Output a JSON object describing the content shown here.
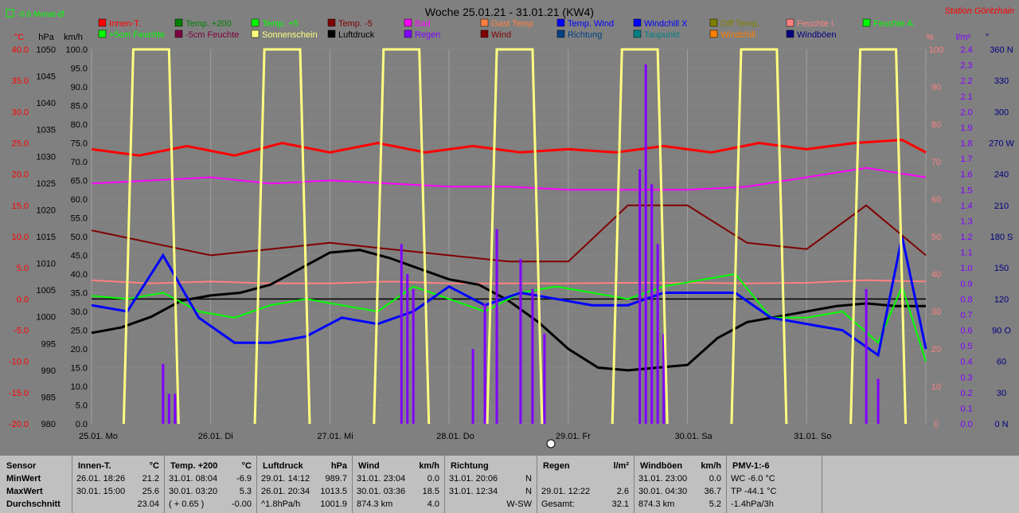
{
  "title": "Woche 25.01.21 - 31.01.21 (KW4)",
  "station": "Station Göritzhain",
  "indicator": "-0.6 Monat-Ø",
  "colors": {
    "background": "#808080",
    "red": "#ff0000",
    "yellow": "#ffff80",
    "green": "#00ff00",
    "purple": "#8b00ff"
  },
  "chart_data": {
    "type": "line",
    "x_days": [
      "25.01. Mo",
      "26.01. Di",
      "27.01. Mi",
      "28.01. Do",
      "29.01. Fr",
      "30.01. Sa",
      "31.01. So"
    ],
    "axes": {
      "temp_c": {
        "unit": "°C",
        "ticks": [
          "40.0",
          "35.0",
          "30.0",
          "25.0",
          "20.0",
          "15.0",
          "10.0",
          "5.0",
          "0.0",
          "-5.0",
          "-10.0",
          "-15.0",
          "-20.0"
        ]
      },
      "pressure_hpa": {
        "unit": "hPa",
        "ticks": [
          "1050",
          "1045",
          "1040",
          "1035",
          "1030",
          "1025",
          "1020",
          "1015",
          "1010",
          "1005",
          "1000",
          "995",
          "990",
          "985",
          "980"
        ]
      },
      "wind_kmh": {
        "unit": "km/h",
        "ticks": [
          "100.0",
          "95.0",
          "90.0",
          "85.0",
          "80.0",
          "75.0",
          "70.0",
          "65.0",
          "60.0",
          "55.0",
          "50.0",
          "45.0",
          "40.0",
          "35.0",
          "30.0",
          "25.0",
          "20.0",
          "15.0",
          "10.0",
          "5.0",
          "0.0"
        ]
      },
      "humidity_pct": {
        "unit": "%",
        "ticks": [
          "100",
          "90",
          "80",
          "70",
          "60",
          "50",
          "40",
          "30",
          "20",
          "10",
          "0"
        ]
      },
      "rain_lm2": {
        "unit": "l/m²",
        "ticks": [
          "2.4",
          "2.3",
          "2.2",
          "2.1",
          "2.0",
          "1.9",
          "1.8",
          "1.7",
          "1.6",
          "1.5",
          "1.4",
          "1.3",
          "1.2",
          "1.1",
          "1.0",
          "0.9",
          "0.8",
          "0.7",
          "0.6",
          "0.5",
          "0.4",
          "0.3",
          "0.2",
          "0.1",
          "0.0"
        ]
      },
      "direction": {
        "unit": "°",
        "ticks": [
          "360 N",
          "330",
          "300",
          "270 W",
          "240",
          "210",
          "180 S",
          "150",
          "120",
          "90 O",
          "60",
          "30",
          "0 N"
        ]
      }
    },
    "legend": [
      {
        "name": "Innen-T.",
        "color": "#ff0000"
      },
      {
        "name": "Temp. +200",
        "color": "#008000"
      },
      {
        "name": "Temp. +5",
        "color": "#00ff00"
      },
      {
        "name": "Temp. -5",
        "color": "#800000"
      },
      {
        "name": "Bad",
        "color": "#ff00ff"
      },
      {
        "name": "Gast Temp",
        "color": "#ff8040"
      },
      {
        "name": "Temp. Wind",
        "color": "#0000ff"
      },
      {
        "name": "Windchill X",
        "color": "#0000ff"
      },
      {
        "name": "Diff Temp.",
        "color": "#808000"
      },
      {
        "name": "Feuchte I.",
        "color": "#ff8080"
      },
      {
        "name": "Feuchte A.",
        "color": "#00ff00"
      },
      {
        "name": "+5cm Feuchte",
        "color": "#00ff00"
      },
      {
        "name": "-5cm Feuchte",
        "color": "#800040"
      },
      {
        "name": "Sonnenschein",
        "color": "#ffff80"
      },
      {
        "name": "Luftdruck",
        "color": "#000000"
      },
      {
        "name": "Regen",
        "color": "#8000ff"
      },
      {
        "name": "Wind",
        "color": "#800000"
      },
      {
        "name": "Richtung",
        "color": "#004080"
      },
      {
        "name": "Taupunkt",
        "color": "#008080"
      },
      {
        "name": "Windchill",
        "color": "#ff8000"
      },
      {
        "name": "Windböen",
        "color": "#000080"
      }
    ],
    "series": [
      {
        "name": "Innen-T.",
        "axis": "temp_c",
        "x": [
          0,
          0.4,
          0.8,
          1.2,
          1.6,
          2,
          2.4,
          2.8,
          3.2,
          3.6,
          4,
          4.4,
          4.8,
          5.2,
          5.6,
          6,
          6.4,
          6.8,
          7
        ],
        "y": [
          24,
          23,
          24.5,
          23,
          25,
          23.5,
          25,
          23.5,
          24.5,
          23.5,
          24,
          23.5,
          24.5,
          23.5,
          25,
          24,
          25,
          25.5,
          23.5
        ]
      },
      {
        "name": "Bad",
        "axis": "temp_c",
        "x": [
          0,
          0.5,
          1,
          1.5,
          2,
          2.5,
          3,
          3.5,
          4,
          4.5,
          5,
          5.5,
          6,
          6.5,
          7
        ],
        "y": [
          18.5,
          19,
          19.5,
          18.5,
          19,
          18.5,
          18,
          18,
          17.5,
          17.5,
          17.5,
          18,
          19.5,
          21,
          19.5
        ]
      },
      {
        "name": "Feuchte I.",
        "axis": "temp_c",
        "x": [
          0,
          0.5,
          1,
          1.5,
          2,
          2.5,
          3,
          3.5,
          4,
          4.5,
          5,
          5.5,
          6,
          6.5,
          7
        ],
        "y": [
          3,
          2.5,
          2.8,
          2.5,
          2.5,
          2.8,
          2.5,
          2.5,
          2.5,
          2.6,
          2.6,
          2.5,
          2.6,
          3,
          2.8
        ]
      },
      {
        "name": "Luftdruck",
        "axis": "pressure_hpa",
        "x": [
          0,
          0.25,
          0.5,
          0.75,
          1,
          1.25,
          1.5,
          1.75,
          2,
          2.25,
          2.5,
          2.75,
          3,
          3.25,
          3.5,
          3.75,
          4,
          4.25,
          4.5,
          4.75,
          5,
          5.25,
          5.5,
          5.75,
          6,
          6.25,
          6.5,
          6.75,
          7
        ],
        "y": [
          997,
          998,
          1000,
          1003,
          1004,
          1004.5,
          1006,
          1009,
          1012,
          1012.5,
          1011,
          1009,
          1007,
          1006,
          1003,
          999,
          994,
          990.5,
          990,
          990.5,
          991,
          996,
          999,
          1000,
          1001,
          1002,
          1002.5,
          1002,
          1002
        ]
      },
      {
        "name": "Temp. +5",
        "axis": "temp_c",
        "x": [
          0,
          0.3,
          0.6,
          0.9,
          1.2,
          1.5,
          1.8,
          2.1,
          2.4,
          2.7,
          3,
          3.3,
          3.6,
          3.9,
          4.2,
          4.5,
          4.8,
          5.1,
          5.4,
          5.7,
          6,
          6.3,
          6.6,
          6.8,
          7
        ],
        "y": [
          0.5,
          0,
          1,
          -2,
          -3,
          -1,
          0,
          -1,
          -2,
          2,
          0,
          -2,
          1,
          2,
          1,
          0,
          2,
          3,
          4,
          -3,
          -3,
          -2,
          -7,
          2,
          -10
        ]
      },
      {
        "name": "Temp. Wind",
        "axis": "temp_c",
        "x": [
          0,
          0.3,
          0.6,
          0.9,
          1.2,
          1.5,
          1.8,
          2.1,
          2.4,
          2.7,
          3,
          3.3,
          3.6,
          3.9,
          4.2,
          4.5,
          4.8,
          5.1,
          5.4,
          5.7,
          6,
          6.3,
          6.6,
          6.8,
          7
        ],
        "y": [
          -1,
          -2,
          7,
          -3,
          -7,
          -7,
          -6,
          -3,
          -4,
          -2,
          2,
          -1,
          1,
          0,
          -1,
          -1,
          1,
          1,
          1,
          -3,
          -4,
          -5,
          -9,
          10,
          -8
        ]
      },
      {
        "name": "Temp. -5",
        "axis": "temp_c",
        "x": [
          0,
          0.5,
          1,
          1.5,
          2,
          2.5,
          3,
          3.5,
          4,
          4.5,
          5,
          5.5,
          6,
          6.5,
          7
        ],
        "y": [
          11,
          9,
          7,
          8,
          9,
          8,
          7,
          6,
          6,
          15,
          15,
          9,
          8,
          15,
          7
        ]
      },
      {
        "name": "Regen",
        "axis": "rain_lm2",
        "type": "bar",
        "x": [
          0.6,
          0.65,
          0.7,
          2.6,
          2.65,
          2.7,
          3.2,
          3.3,
          3.4,
          3.6,
          3.7,
          3.8,
          4.6,
          4.65,
          4.7,
          4.75,
          4.8,
          6.5,
          6.6
        ],
        "y": [
          0.4,
          0.2,
          0.2,
          1.2,
          1.0,
          0.9,
          0.5,
          0.8,
          1.3,
          1.1,
          0.9,
          0.6,
          1.7,
          2.4,
          1.6,
          1.2,
          0.6,
          0.9,
          0.3
        ]
      },
      {
        "name": "Sonnenschein",
        "axis": "wind_kmh",
        "type": "area-edges",
        "x": [
          0.35,
          0.65,
          1.45,
          1.75,
          2.45,
          2.75,
          3.4,
          3.7,
          4.45,
          4.75,
          5.45,
          5.75,
          6.45,
          6.75
        ],
        "y": [
          100,
          100,
          100,
          100,
          100,
          100,
          100,
          100,
          100,
          100,
          100,
          100,
          100,
          100
        ]
      }
    ]
  },
  "stats": {
    "columns": [
      {
        "header": "Sensor",
        "rows": [
          "MinWert",
          "MaxWert",
          "Durchschnitt"
        ]
      },
      {
        "header": "Innen-T.",
        "unit": "°C",
        "rows": [
          [
            "26.01.  18:26",
            "21.2"
          ],
          [
            "30.01.  15:00",
            "25.6"
          ],
          [
            "",
            "23.04"
          ]
        ]
      },
      {
        "header": "Temp. +200",
        "unit": "°C",
        "rows": [
          [
            "31.01.  08:04",
            "-6.9"
          ],
          [
            "30.01.  03:20",
            "5.3"
          ],
          [
            "( + 0.65 )",
            "-0.00"
          ]
        ]
      },
      {
        "header": "Luftdruck",
        "unit": "hPa",
        "rows": [
          [
            "29.01.  14:12",
            "989.7"
          ],
          [
            "26.01.  20:34",
            "1013.5"
          ],
          [
            "^1.8hPa/h",
            "1001.9"
          ]
        ]
      },
      {
        "header": "Wind",
        "unit": "km/h",
        "rows": [
          [
            "31.01.  23:04",
            "0.0"
          ],
          [
            "30.01.  03:36",
            "18.5"
          ],
          [
            "874.3 km",
            "4.0"
          ]
        ]
      },
      {
        "header": "Richtung",
        "unit": "",
        "rows": [
          [
            "31.01.  20:06",
            "N"
          ],
          [
            "31.01.  12:34",
            "N"
          ],
          [
            "",
            "W-SW"
          ]
        ]
      },
      {
        "header": "Regen",
        "unit": "l/m²",
        "rows": [
          [
            "",
            ""
          ],
          [
            "29.01.  12:22",
            "2.6"
          ],
          [
            "Gesamt:",
            "32.1"
          ]
        ]
      },
      {
        "header": "Windböen",
        "unit": "km/h",
        "rows": [
          [
            "31.01.  23:00",
            "0.0"
          ],
          [
            "30.01.  04:30",
            "36.7"
          ],
          [
            "874.3 km",
            "5.2"
          ]
        ]
      },
      {
        "header": "PMV-1:-6",
        "unit": "",
        "rows": [
          [
            "WC -6.0 °C",
            ""
          ],
          [
            "TP -44.1 °C",
            ""
          ],
          [
            "-1.4hPa/3h",
            ""
          ]
        ]
      }
    ]
  }
}
